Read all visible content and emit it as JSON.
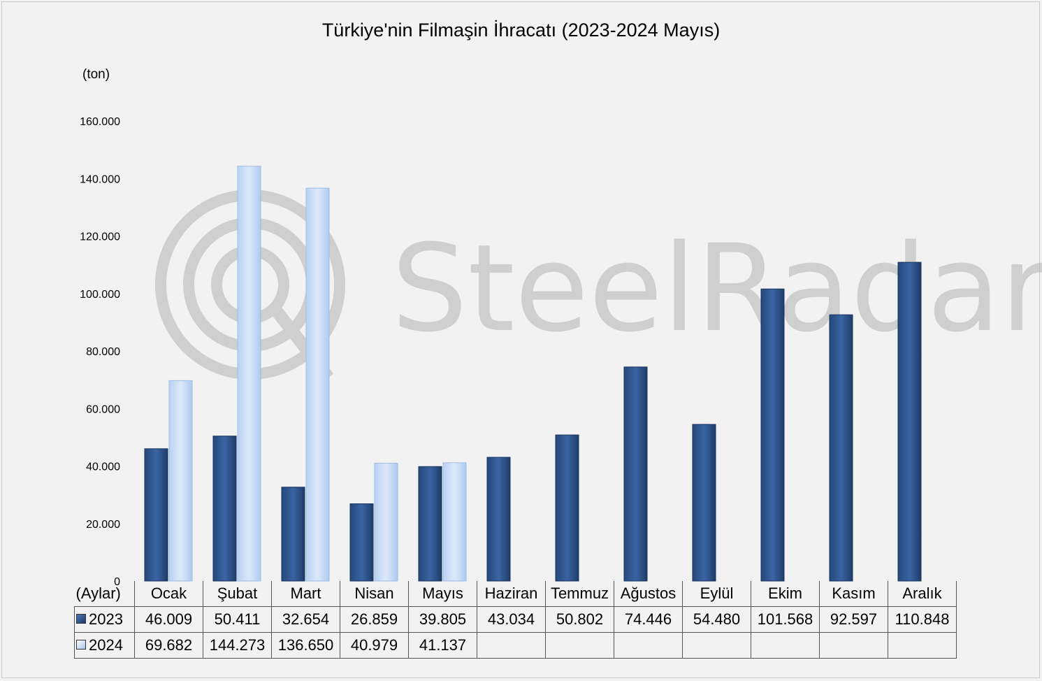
{
  "chart_data": {
    "type": "bar",
    "title": "Türkiye'nin Filmaşin İhracatı (2023-2024 Mayıs)",
    "ylabel": "(ton)",
    "xlabel": "(Aylar)",
    "ylim": [
      0,
      160000
    ],
    "yticks": [
      {
        "value": 0,
        "label": "0"
      },
      {
        "value": 20000,
        "label": "20.000"
      },
      {
        "value": 40000,
        "label": "40.000"
      },
      {
        "value": 60000,
        "label": "60.000"
      },
      {
        "value": 80000,
        "label": "80.000"
      },
      {
        "value": 100000,
        "label": "100.000"
      },
      {
        "value": 120000,
        "label": "120.000"
      },
      {
        "value": 140000,
        "label": "140.000"
      },
      {
        "value": 160000,
        "label": "160.000"
      }
    ],
    "categories": [
      "Ocak",
      "Şubat",
      "Mart",
      "Nisan",
      "Mayıs",
      "Haziran",
      "Temmuz",
      "Ağustos",
      "Eylül",
      "Ekim",
      "Kasım",
      "Aralık"
    ],
    "series": [
      {
        "name": "2023",
        "color": "#2e5088",
        "values": [
          46009,
          50411,
          32654,
          26859,
          39805,
          43034,
          50802,
          74446,
          54480,
          101568,
          92597,
          110848
        ],
        "labels": [
          "46.009",
          "50.411",
          "32.654",
          "26.859",
          "39.805",
          "43.034",
          "50.802",
          "74.446",
          "54.480",
          "101.568",
          "92.597",
          "110.848"
        ]
      },
      {
        "name": "2024",
        "color": "#c9dcf5",
        "values": [
          69682,
          144273,
          136650,
          40979,
          41137,
          null,
          null,
          null,
          null,
          null,
          null,
          null
        ],
        "labels": [
          "69.682",
          "144.273",
          "136.650",
          "40.979",
          "41.137",
          "",
          "",
          "",
          "",
          "",
          "",
          ""
        ]
      }
    ],
    "legend": "data-table",
    "grid": false,
    "watermark": "SteelRadar"
  }
}
